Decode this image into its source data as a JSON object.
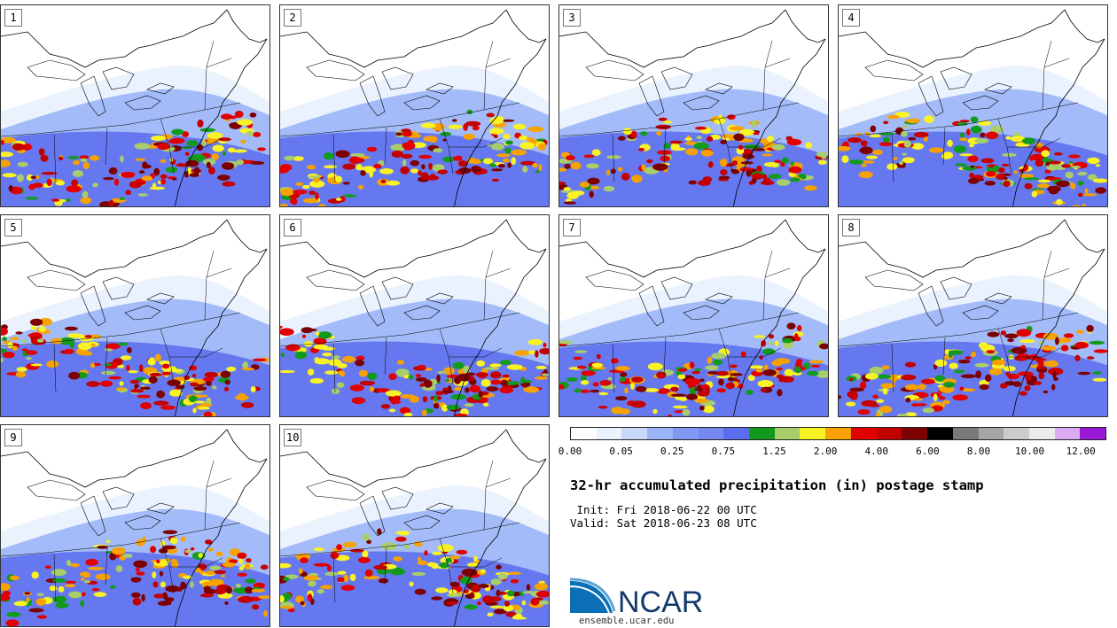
{
  "panels": [
    {
      "label": "1"
    },
    {
      "label": "2"
    },
    {
      "label": "3"
    },
    {
      "label": "4"
    },
    {
      "label": "5"
    },
    {
      "label": "6"
    },
    {
      "label": "7"
    },
    {
      "label": "8"
    },
    {
      "label": "9"
    },
    {
      "label": "10"
    }
  ],
  "colorbar": {
    "colors": [
      "#ffffff",
      "#eaf2fd",
      "#c7d8fb",
      "#9bb5f7",
      "#8199f3",
      "#7688f0",
      "#5c6cee",
      "#129a1e",
      "#a9cd6a",
      "#f9f325",
      "#f7a200",
      "#e10000",
      "#c30000",
      "#7d0000",
      "#000000",
      "#7a7a7a",
      "#a6a6a6",
      "#cccccc",
      "#ececec",
      "#dcaaf0",
      "#9a18d8"
    ],
    "tick_labels": [
      "0.00",
      "0.05",
      "0.25",
      "0.75",
      "1.25",
      "2.00",
      "4.00",
      "6.00",
      "8.00",
      "10.00",
      "12.00"
    ]
  },
  "title": "32-hr accumulated precipitation (in) postage stamp",
  "init": " Init: Fri 2018-06-22 00 UTC",
  "valid": "Valid: Sat 2018-06-23 08 UTC",
  "logo_text": "NCAR",
  "url": "ensemble.ucar.edu"
}
